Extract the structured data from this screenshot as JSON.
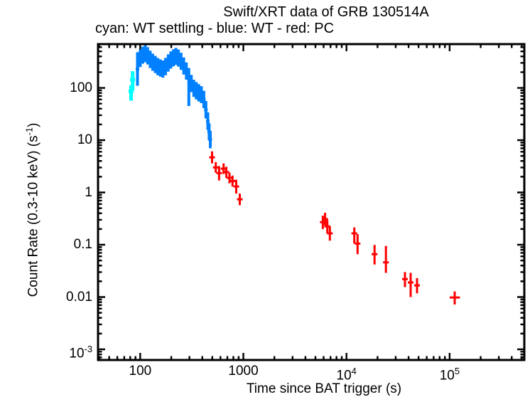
{
  "page": {
    "background": "#ffffff"
  },
  "chart_data": {
    "type": "scatter",
    "title": "Swift/XRT data of GRB 130514A",
    "subtitle": "cyan: WT settling - blue: WT - red: PC",
    "xlabel": "Time since BAT trigger (s)",
    "ylabel_parts": [
      "Count Rate (0.3-10 keV) (s",
      "-1",
      ")"
    ],
    "xscale": "log",
    "yscale": "log",
    "xlim": [
      39,
      530000
    ],
    "ylim": [
      0.000625,
      687
    ],
    "grid": false,
    "axis_color": "#000000",
    "background_color": "#ffffff",
    "legend_position": "subtitle-line",
    "xticks": [
      {
        "v": 100,
        "label": "100"
      },
      {
        "v": 1000,
        "label": "1000"
      },
      {
        "v": 10000,
        "label": "10",
        "exp": "4"
      },
      {
        "v": 100000,
        "label": "10",
        "exp": "5"
      }
    ],
    "yticks": [
      {
        "v": 100,
        "label": "100"
      },
      {
        "v": 10,
        "label": "10"
      },
      {
        "v": 1,
        "label": "1"
      },
      {
        "v": 0.1,
        "label": "0.1"
      },
      {
        "v": 0.01,
        "label": "0.01"
      },
      {
        "v": 0.001,
        "label": "10",
        "exp": "-3"
      }
    ],
    "point_format": [
      "t",
      "t_lo",
      "t_hi",
      "rate",
      "rate_lo",
      "rate_hi"
    ],
    "series": [
      {
        "name": "WT settling",
        "color": "#00ffff",
        "points": [
          [
            81.5,
            81,
            82,
            86,
            57,
            112
          ],
          [
            84.5,
            84,
            85,
            143,
            89,
            208
          ]
        ]
      },
      {
        "name": "WT",
        "color": "#0080ff",
        "points": [
          [
            94,
            94,
            94,
            230,
            110,
            480
          ],
          [
            100,
            100,
            100,
            370,
            250,
            545
          ],
          [
            106,
            106,
            106,
            420,
            290,
            615
          ],
          [
            112,
            112,
            112,
            450,
            310,
            655
          ],
          [
            118,
            118,
            118,
            410,
            280,
            600
          ],
          [
            125,
            125,
            125,
            350,
            240,
            515
          ],
          [
            132,
            132,
            132,
            310,
            212,
            452
          ],
          [
            140,
            140,
            140,
            281,
            192,
            410
          ],
          [
            148,
            148,
            148,
            256,
            175,
            373
          ],
          [
            157,
            157,
            157,
            240,
            164,
            350
          ],
          [
            166,
            166,
            166,
            229,
            157,
            334
          ],
          [
            176,
            176,
            176,
            256,
            175,
            374
          ],
          [
            187,
            187,
            187,
            300,
            205,
            438
          ],
          [
            198,
            198,
            198,
            341,
            233,
            498
          ],
          [
            210,
            210,
            210,
            375,
            257,
            548
          ],
          [
            222,
            222,
            222,
            400,
            274,
            584
          ],
          [
            235,
            235,
            235,
            371,
            254,
            542
          ],
          [
            249,
            249,
            249,
            321,
            220,
            469
          ],
          [
            264,
            264,
            264,
            262,
            180,
            383
          ],
          [
            280,
            280,
            280,
            210,
            144,
            307
          ],
          [
            296,
            296,
            296,
            148,
            45,
            240
          ],
          [
            313,
            313,
            313,
            121,
            83,
            177
          ],
          [
            331,
            331,
            331,
            98,
            67,
            143
          ],
          [
            350,
            350,
            350,
            88,
            60,
            129
          ],
          [
            370,
            370,
            370,
            81,
            55,
            118
          ],
          [
            392,
            392,
            392,
            74,
            51,
            108
          ],
          [
            414,
            414,
            414,
            60,
            41,
            88
          ],
          [
            433,
            433,
            433,
            38,
            26,
            56
          ],
          [
            452,
            452,
            452,
            23,
            15.7,
            34
          ],
          [
            466,
            466,
            466,
            14.5,
            9.9,
            21
          ],
          [
            478,
            478,
            478,
            10.3,
            7.0,
            15
          ]
        ]
      },
      {
        "name": "PC",
        "color": "#ff0000",
        "points": [
          [
            497,
            480,
            515,
            4.7,
            3.6,
            6.1
          ],
          [
            540,
            523,
            558,
            3.0,
            2.4,
            3.8
          ],
          [
            582,
            562,
            602,
            2.35,
            1.7,
            3.2
          ],
          [
            643,
            622,
            664,
            2.85,
            2.25,
            3.6
          ],
          [
            684,
            663,
            706,
            2.45,
            1.9,
            3.1
          ],
          [
            734,
            710,
            758,
            1.9,
            1.5,
            2.4
          ],
          [
            786,
            760,
            812,
            1.65,
            1.3,
            2.1
          ],
          [
            853,
            823,
            884,
            1.3,
            0.95,
            1.75
          ],
          [
            924,
            890,
            958,
            0.74,
            0.57,
            0.95
          ],
          [
            5900,
            5700,
            6100,
            0.27,
            0.2,
            0.36
          ],
          [
            6200,
            6000,
            6400,
            0.31,
            0.235,
            0.41
          ],
          [
            6520,
            6300,
            6740,
            0.225,
            0.165,
            0.3
          ],
          [
            6900,
            6650,
            7150,
            0.165,
            0.12,
            0.225
          ],
          [
            11900,
            11400,
            12400,
            0.165,
            0.105,
            0.215
          ],
          [
            12800,
            12250,
            13350,
            0.105,
            0.066,
            0.16
          ],
          [
            18700,
            17900,
            19500,
            0.066,
            0.042,
            0.099
          ],
          [
            24100,
            22800,
            25500,
            0.046,
            0.029,
            0.095
          ],
          [
            36900,
            35400,
            38400,
            0.022,
            0.0155,
            0.03
          ],
          [
            41900,
            40200,
            43600,
            0.019,
            0.01,
            0.029
          ],
          [
            48300,
            46300,
            50300,
            0.0167,
            0.0118,
            0.023
          ],
          [
            112000,
            100000,
            126000,
            0.0098,
            0.0072,
            0.0128
          ]
        ]
      }
    ]
  }
}
